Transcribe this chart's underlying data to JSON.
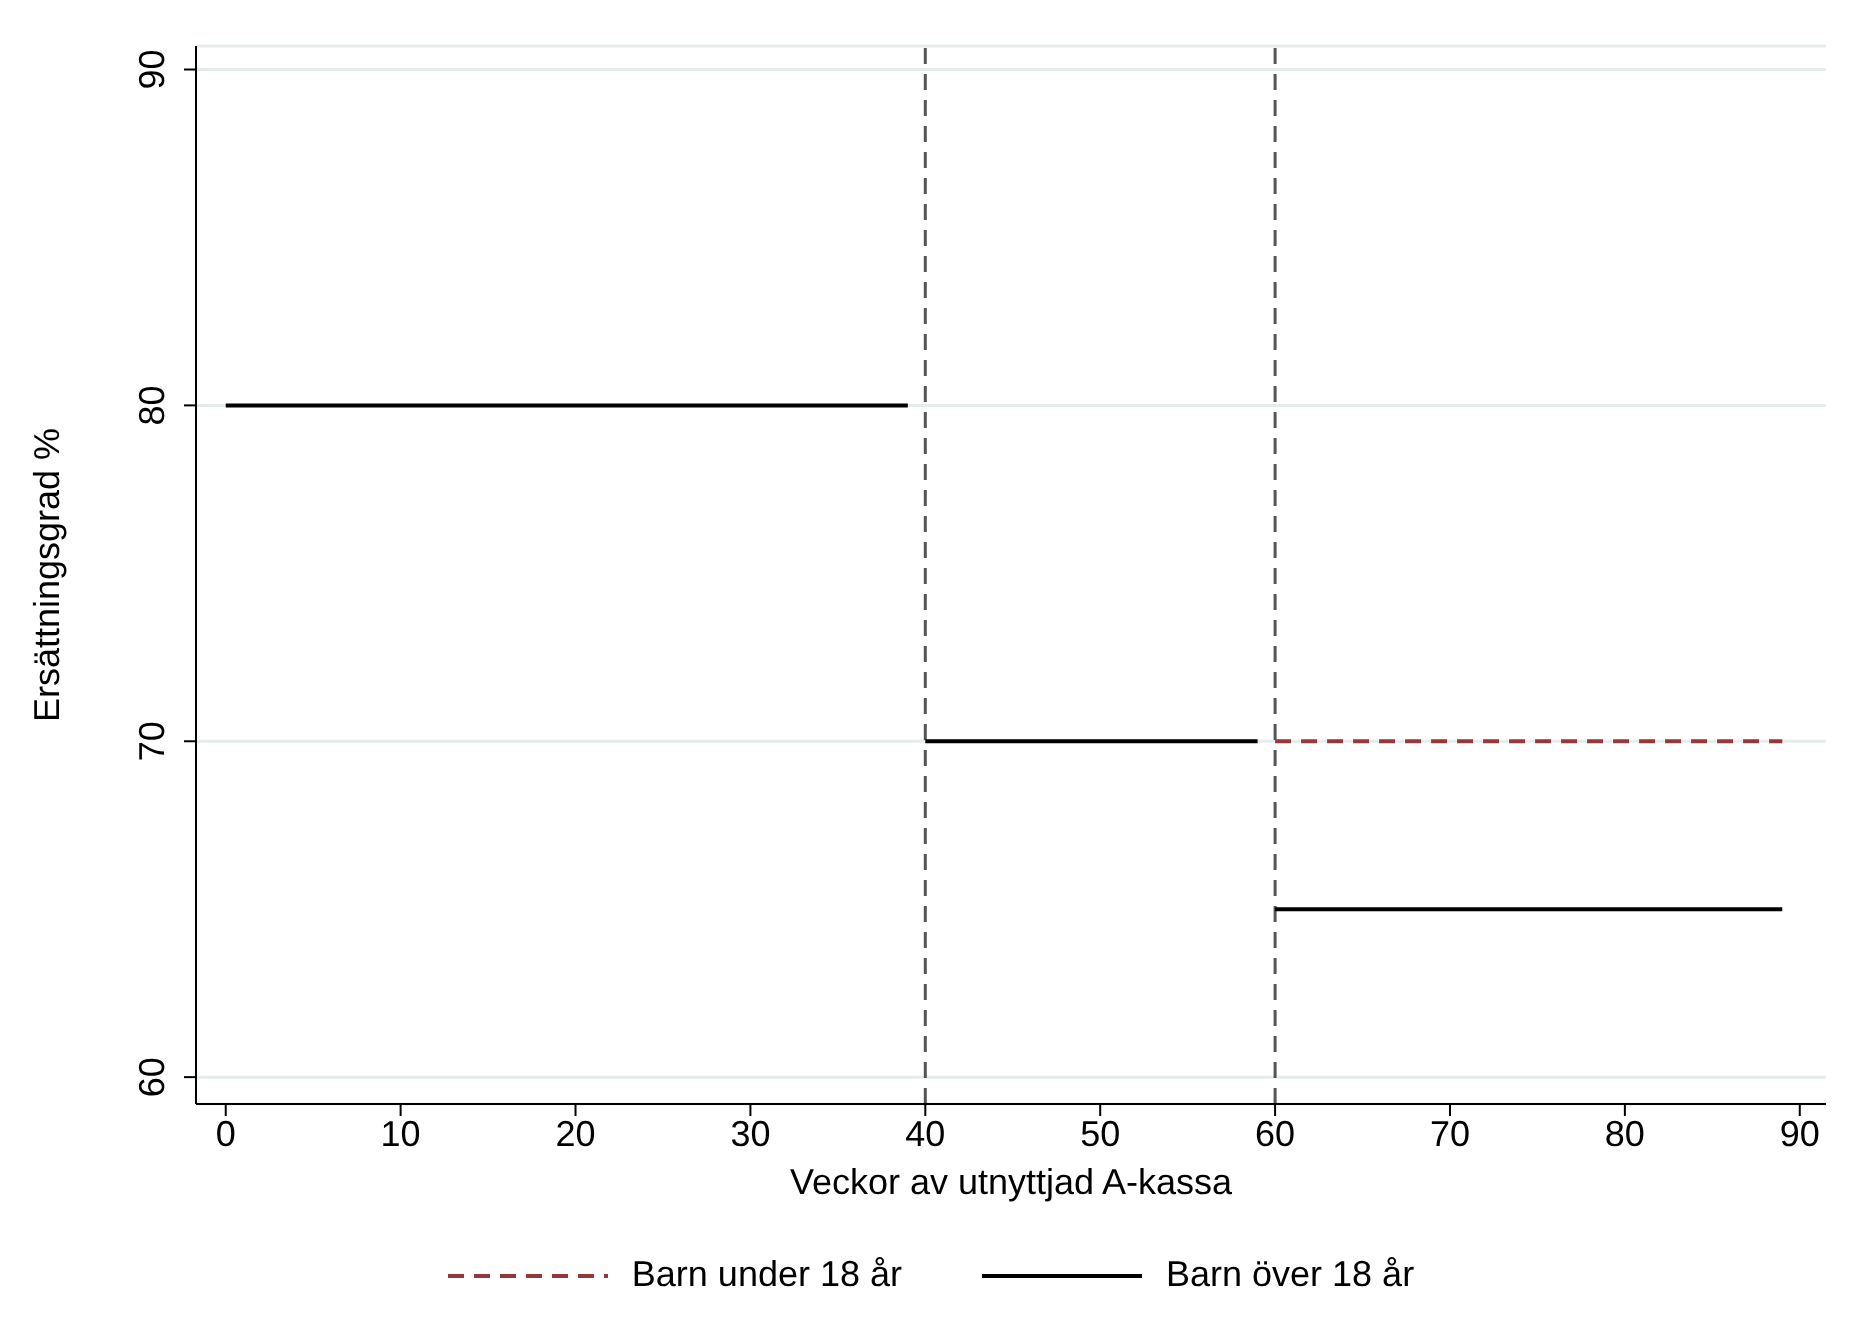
{
  "chart_data": {
    "type": "line",
    "xlabel": "Veckor av utnyttjad A-kassa",
    "ylabel": "Ersättningsgrad %",
    "xlim": [
      -1.7,
      91.5
    ],
    "xticks": [
      0,
      10,
      20,
      30,
      40,
      50,
      60,
      70,
      80,
      90
    ],
    "ylim": [
      59.2,
      90.7
    ],
    "yticks": [
      60,
      70,
      80,
      90
    ],
    "grid": "y",
    "legend": "bottom",
    "marker": "none",
    "series": [
      {
        "name": "Barn under 18 år",
        "color": "#93383b",
        "line_style": "dashed",
        "x": [
          60,
          89
        ],
        "values": [
          70,
          70
        ]
      },
      {
        "name": "Barn över 18 år",
        "color": "#000000",
        "line_style": "solid",
        "x": [
          0,
          39,
          39.5,
          40,
          59,
          59.5,
          60,
          89
        ],
        "values": [
          80,
          80,
          null,
          70,
          70,
          null,
          65,
          65
        ]
      }
    ],
    "ref_lines": [
      {
        "axis": "x",
        "value": 40,
        "color": "#555555",
        "line_style": "dashed"
      },
      {
        "axis": "x",
        "value": 60,
        "color": "#555555",
        "line_style": "dashed"
      }
    ]
  }
}
